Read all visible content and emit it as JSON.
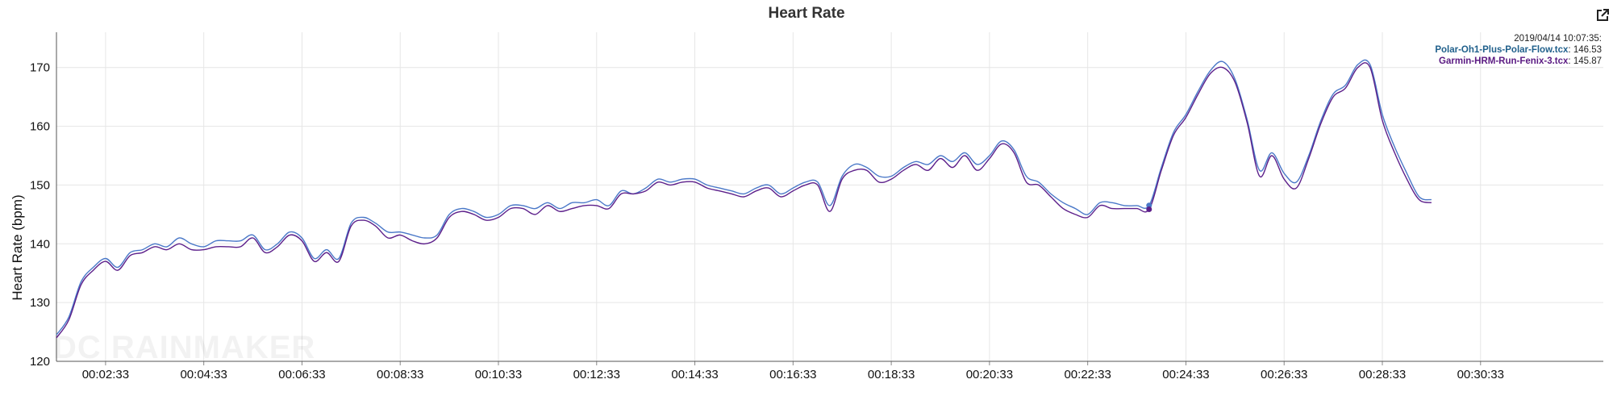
{
  "chart_data": {
    "type": "line",
    "title": "Heart Rate",
    "ylabel": "Heart Rate (bpm)",
    "xlabel": "",
    "ylim": [
      120,
      176
    ],
    "xlim": [
      "00:01:33",
      "00:33:03"
    ],
    "yticks": [
      120,
      130,
      140,
      150,
      160,
      170
    ],
    "xticks": [
      "00:02:33",
      "00:04:33",
      "00:06:33",
      "00:08:33",
      "00:10:33",
      "00:12:33",
      "00:14:33",
      "00:16:33",
      "00:18:33",
      "00:20:33",
      "00:22:33",
      "00:24:33",
      "00:26:33",
      "00:28:33",
      "00:30:33"
    ],
    "grid": true,
    "watermark": "DC RAINMAKER",
    "tooltip": {
      "timestamp": "2019/04/14 10:07:35:",
      "time": "00:23:48",
      "entries": [
        {
          "name": "Polar-Oh1-Plus-Polar-Flow.tcx",
          "value": "146.53"
        },
        {
          "name": "Garmin-HRM-Run-Fenix-3.tcx",
          "value": "145.87"
        }
      ]
    },
    "series": [
      {
        "name": "Polar-Oh1-Plus-Polar-Flow.tcx",
        "color": "#4a78c8",
        "points": [
          [
            "00:01:33",
            124.5
          ],
          [
            "00:01:48",
            127.5
          ],
          [
            "00:02:03",
            133.5
          ],
          [
            "00:02:18",
            136.0
          ],
          [
            "00:02:33",
            137.5
          ],
          [
            "00:02:48",
            136.0
          ],
          [
            "00:03:03",
            138.5
          ],
          [
            "00:03:18",
            139.0
          ],
          [
            "00:03:33",
            140.0
          ],
          [
            "00:03:48",
            139.5
          ],
          [
            "00:04:03",
            141.0
          ],
          [
            "00:04:18",
            140.0
          ],
          [
            "00:04:33",
            139.5
          ],
          [
            "00:04:48",
            140.5
          ],
          [
            "00:05:03",
            140.5
          ],
          [
            "00:05:18",
            140.5
          ],
          [
            "00:05:33",
            141.5
          ],
          [
            "00:05:48",
            139.0
          ],
          [
            "00:06:03",
            140.0
          ],
          [
            "00:06:18",
            142.0
          ],
          [
            "00:06:33",
            141.0
          ],
          [
            "00:06:48",
            137.5
          ],
          [
            "00:07:03",
            139.0
          ],
          [
            "00:07:18",
            137.5
          ],
          [
            "00:07:33",
            143.5
          ],
          [
            "00:07:48",
            144.5
          ],
          [
            "00:08:03",
            143.5
          ],
          [
            "00:08:18",
            142.0
          ],
          [
            "00:08:33",
            142.0
          ],
          [
            "00:08:48",
            141.5
          ],
          [
            "00:09:03",
            141.0
          ],
          [
            "00:09:18",
            141.5
          ],
          [
            "00:09:33",
            145.0
          ],
          [
            "00:09:48",
            146.0
          ],
          [
            "00:10:03",
            145.5
          ],
          [
            "00:10:18",
            144.5
          ],
          [
            "00:10:33",
            145.0
          ],
          [
            "00:10:48",
            146.5
          ],
          [
            "00:11:03",
            146.5
          ],
          [
            "00:11:18",
            146.0
          ],
          [
            "00:11:33",
            147.0
          ],
          [
            "00:11:48",
            146.0
          ],
          [
            "00:12:03",
            147.0
          ],
          [
            "00:12:18",
            147.0
          ],
          [
            "00:12:33",
            147.5
          ],
          [
            "00:12:48",
            146.5
          ],
          [
            "00:13:03",
            149.0
          ],
          [
            "00:13:18",
            148.5
          ],
          [
            "00:13:33",
            149.5
          ],
          [
            "00:13:48",
            151.0
          ],
          [
            "00:14:03",
            150.5
          ],
          [
            "00:14:18",
            151.0
          ],
          [
            "00:14:33",
            151.0
          ],
          [
            "00:14:48",
            150.0
          ],
          [
            "00:15:03",
            149.5
          ],
          [
            "00:15:18",
            149.0
          ],
          [
            "00:15:33",
            148.5
          ],
          [
            "00:15:48",
            149.5
          ],
          [
            "00:16:03",
            150.0
          ],
          [
            "00:16:18",
            148.5
          ],
          [
            "00:16:33",
            149.5
          ],
          [
            "00:16:48",
            150.5
          ],
          [
            "00:17:03",
            150.5
          ],
          [
            "00:17:18",
            146.5
          ],
          [
            "00:17:33",
            151.5
          ],
          [
            "00:17:48",
            153.5
          ],
          [
            "00:18:03",
            153.0
          ],
          [
            "00:18:18",
            151.5
          ],
          [
            "00:18:33",
            151.5
          ],
          [
            "00:18:48",
            153.0
          ],
          [
            "00:19:03",
            154.0
          ],
          [
            "00:19:18",
            153.5
          ],
          [
            "00:19:33",
            155.0
          ],
          [
            "00:19:48",
            154.0
          ],
          [
            "00:20:03",
            155.5
          ],
          [
            "00:20:18",
            153.5
          ],
          [
            "00:20:33",
            155.0
          ],
          [
            "00:20:48",
            157.5
          ],
          [
            "00:21:03",
            156.0
          ],
          [
            "00:21:18",
            151.5
          ],
          [
            "00:21:33",
            150.5
          ],
          [
            "00:21:48",
            148.5
          ],
          [
            "00:22:03",
            147.0
          ],
          [
            "00:22:18",
            146.0
          ],
          [
            "00:22:33",
            145.0
          ],
          [
            "00:22:48",
            147.0
          ],
          [
            "00:23:03",
            147.0
          ],
          [
            "00:23:18",
            146.5
          ],
          [
            "00:23:33",
            146.5
          ],
          [
            "00:23:48",
            146.53
          ],
          [
            "00:24:03",
            153.0
          ],
          [
            "00:24:18",
            159.0
          ],
          [
            "00:24:33",
            162.0
          ],
          [
            "00:24:48",
            166.0
          ],
          [
            "00:25:03",
            169.5
          ],
          [
            "00:25:18",
            171.0
          ],
          [
            "00:25:33",
            168.0
          ],
          [
            "00:25:48",
            161.0
          ],
          [
            "00:26:03",
            152.5
          ],
          [
            "00:26:18",
            155.5
          ],
          [
            "00:26:33",
            152.0
          ],
          [
            "00:26:48",
            150.5
          ],
          [
            "00:27:03",
            155.0
          ],
          [
            "00:27:18",
            161.0
          ],
          [
            "00:27:33",
            165.5
          ],
          [
            "00:27:48",
            167.0
          ],
          [
            "00:28:03",
            170.5
          ],
          [
            "00:28:18",
            170.5
          ],
          [
            "00:28:33",
            162.0
          ],
          [
            "00:28:48",
            156.5
          ],
          [
            "00:29:03",
            152.0
          ],
          [
            "00:29:18",
            148.0
          ],
          [
            "00:29:33",
            147.5
          ]
        ]
      },
      {
        "name": "Garmin-HRM-Run-Fenix-3.tcx",
        "color": "#5c1f8a",
        "points": [
          [
            "00:01:33",
            124.0
          ],
          [
            "00:01:48",
            127.0
          ],
          [
            "00:02:03",
            133.0
          ],
          [
            "00:02:18",
            135.5
          ],
          [
            "00:02:33",
            137.0
          ],
          [
            "00:02:48",
            135.5
          ],
          [
            "00:03:03",
            138.0
          ],
          [
            "00:03:18",
            138.5
          ],
          [
            "00:03:33",
            139.5
          ],
          [
            "00:03:48",
            139.0
          ],
          [
            "00:04:03",
            140.0
          ],
          [
            "00:04:18",
            139.0
          ],
          [
            "00:04:33",
            139.0
          ],
          [
            "00:04:48",
            139.5
          ],
          [
            "00:05:03",
            139.5
          ],
          [
            "00:05:18",
            139.5
          ],
          [
            "00:05:33",
            141.0
          ],
          [
            "00:05:48",
            138.5
          ],
          [
            "00:06:03",
            139.5
          ],
          [
            "00:06:18",
            141.5
          ],
          [
            "00:06:33",
            140.5
          ],
          [
            "00:06:48",
            137.0
          ],
          [
            "00:07:03",
            138.5
          ],
          [
            "00:07:18",
            137.0
          ],
          [
            "00:07:33",
            143.0
          ],
          [
            "00:07:48",
            144.0
          ],
          [
            "00:08:03",
            143.0
          ],
          [
            "00:08:18",
            141.0
          ],
          [
            "00:08:33",
            141.5
          ],
          [
            "00:08:48",
            140.5
          ],
          [
            "00:09:03",
            140.0
          ],
          [
            "00:09:18",
            141.0
          ],
          [
            "00:09:33",
            144.5
          ],
          [
            "00:09:48",
            145.5
          ],
          [
            "00:10:03",
            145.0
          ],
          [
            "00:10:18",
            144.0
          ],
          [
            "00:10:33",
            144.5
          ],
          [
            "00:10:48",
            146.0
          ],
          [
            "00:11:03",
            146.0
          ],
          [
            "00:11:18",
            145.0
          ],
          [
            "00:11:33",
            146.5
          ],
          [
            "00:11:48",
            145.5
          ],
          [
            "00:12:03",
            146.0
          ],
          [
            "00:12:18",
            146.5
          ],
          [
            "00:12:33",
            146.5
          ],
          [
            "00:12:48",
            146.0
          ],
          [
            "00:13:03",
            148.5
          ],
          [
            "00:13:18",
            148.5
          ],
          [
            "00:13:33",
            149.0
          ],
          [
            "00:13:48",
            150.5
          ],
          [
            "00:14:03",
            150.0
          ],
          [
            "00:14:18",
            150.5
          ],
          [
            "00:14:33",
            150.5
          ],
          [
            "00:14:48",
            149.5
          ],
          [
            "00:15:03",
            149.0
          ],
          [
            "00:15:18",
            148.5
          ],
          [
            "00:15:33",
            148.0
          ],
          [
            "00:15:48",
            149.0
          ],
          [
            "00:16:03",
            149.5
          ],
          [
            "00:16:18",
            148.0
          ],
          [
            "00:16:33",
            149.0
          ],
          [
            "00:16:48",
            150.0
          ],
          [
            "00:17:03",
            150.0
          ],
          [
            "00:17:18",
            145.5
          ],
          [
            "00:17:33",
            151.0
          ],
          [
            "00:17:48",
            152.5
          ],
          [
            "00:18:03",
            152.5
          ],
          [
            "00:18:18",
            150.5
          ],
          [
            "00:18:33",
            151.0
          ],
          [
            "00:18:48",
            152.5
          ],
          [
            "00:19:03",
            153.5
          ],
          [
            "00:19:18",
            152.5
          ],
          [
            "00:19:33",
            154.5
          ],
          [
            "00:19:48",
            153.0
          ],
          [
            "00:20:03",
            155.0
          ],
          [
            "00:20:18",
            152.5
          ],
          [
            "00:20:33",
            154.5
          ],
          [
            "00:20:48",
            157.0
          ],
          [
            "00:21:03",
            155.5
          ],
          [
            "00:21:18",
            150.5
          ],
          [
            "00:21:33",
            150.0
          ],
          [
            "00:21:48",
            148.0
          ],
          [
            "00:22:03",
            146.0
          ],
          [
            "00:22:18",
            145.0
          ],
          [
            "00:22:33",
            144.5
          ],
          [
            "00:22:48",
            146.5
          ],
          [
            "00:23:03",
            146.0
          ],
          [
            "00:23:18",
            146.0
          ],
          [
            "00:23:33",
            146.0
          ],
          [
            "00:23:48",
            145.87
          ],
          [
            "00:24:03",
            152.5
          ],
          [
            "00:24:18",
            158.5
          ],
          [
            "00:24:33",
            161.5
          ],
          [
            "00:24:48",
            165.5
          ],
          [
            "00:25:03",
            169.0
          ],
          [
            "00:25:18",
            170.0
          ],
          [
            "00:25:33",
            167.5
          ],
          [
            "00:25:48",
            160.5
          ],
          [
            "00:26:03",
            151.5
          ],
          [
            "00:26:18",
            155.0
          ],
          [
            "00:26:33",
            151.0
          ],
          [
            "00:26:48",
            149.5
          ],
          [
            "00:27:03",
            154.5
          ],
          [
            "00:27:18",
            160.5
          ],
          [
            "00:27:33",
            165.0
          ],
          [
            "00:27:48",
            166.5
          ],
          [
            "00:28:03",
            170.0
          ],
          [
            "00:28:18",
            170.0
          ],
          [
            "00:28:33",
            161.0
          ],
          [
            "00:28:48",
            155.5
          ],
          [
            "00:29:03",
            151.0
          ],
          [
            "00:29:18",
            147.5
          ],
          [
            "00:29:33",
            147.0
          ]
        ]
      }
    ]
  },
  "ui": {
    "export_icon": "external-link-icon"
  }
}
